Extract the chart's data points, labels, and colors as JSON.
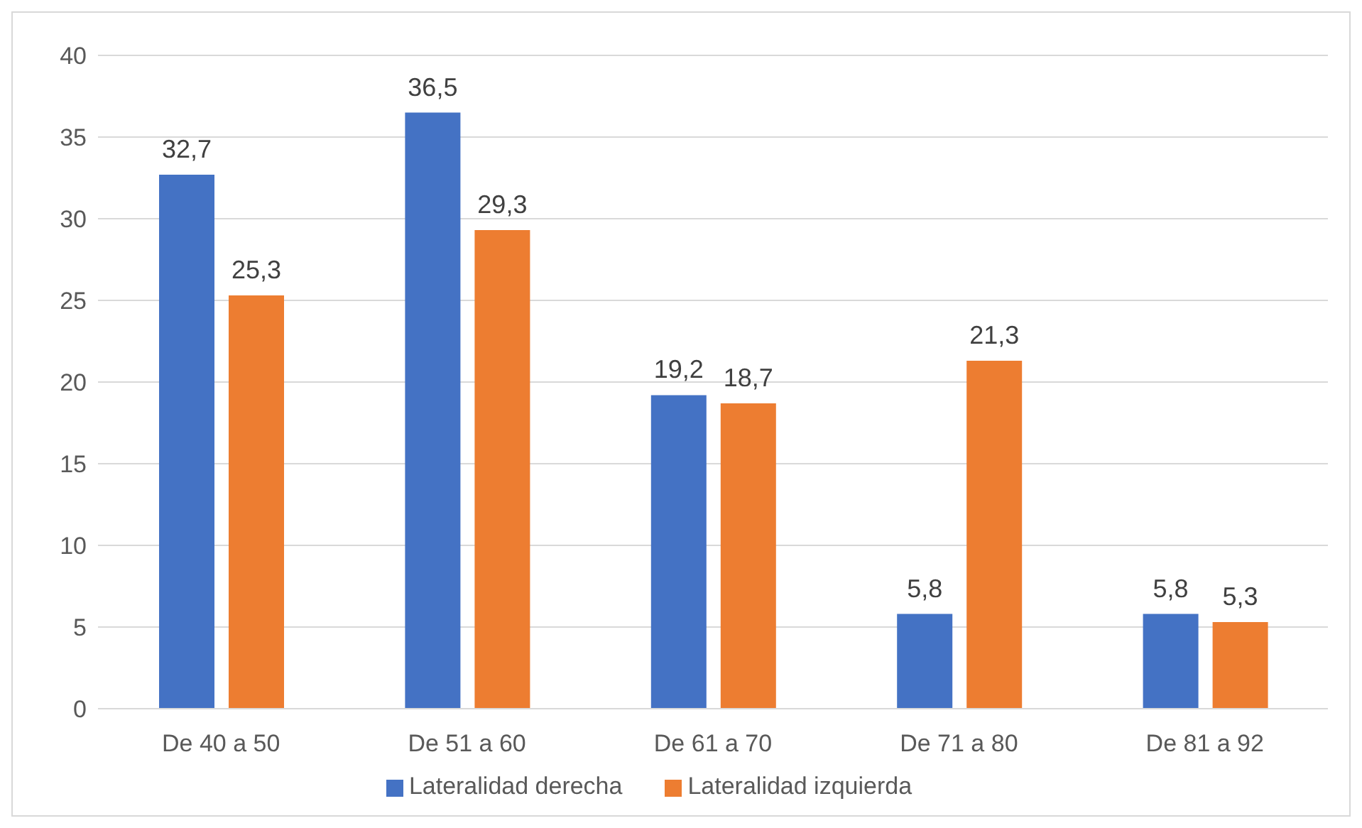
{
  "chart_data": {
    "type": "bar",
    "categories": [
      "De 40 a 50",
      "De 51 a 60",
      "De 61 a 70",
      "De 71 a 80",
      "De 81 a 92"
    ],
    "series": [
      {
        "name": "Lateralidad derecha",
        "color": "#4472c4",
        "values": [
          32.7,
          36.5,
          19.2,
          5.8,
          5.8
        ],
        "value_labels": [
          "32,7",
          "36,5",
          "19,2",
          "5,8",
          "5,8"
        ]
      },
      {
        "name": "Lateralidad izquierda",
        "color": "#ed7d31",
        "values": [
          25.3,
          29.3,
          18.7,
          21.3,
          5.3
        ],
        "value_labels": [
          "25,3",
          "29,3",
          "18,7",
          "21,3",
          "5,3"
        ]
      }
    ],
    "ylim": [
      0,
      40
    ],
    "yticks": [
      0,
      5,
      10,
      15,
      20,
      25,
      30,
      35,
      40
    ],
    "grid": "y",
    "legend": "bottom"
  }
}
